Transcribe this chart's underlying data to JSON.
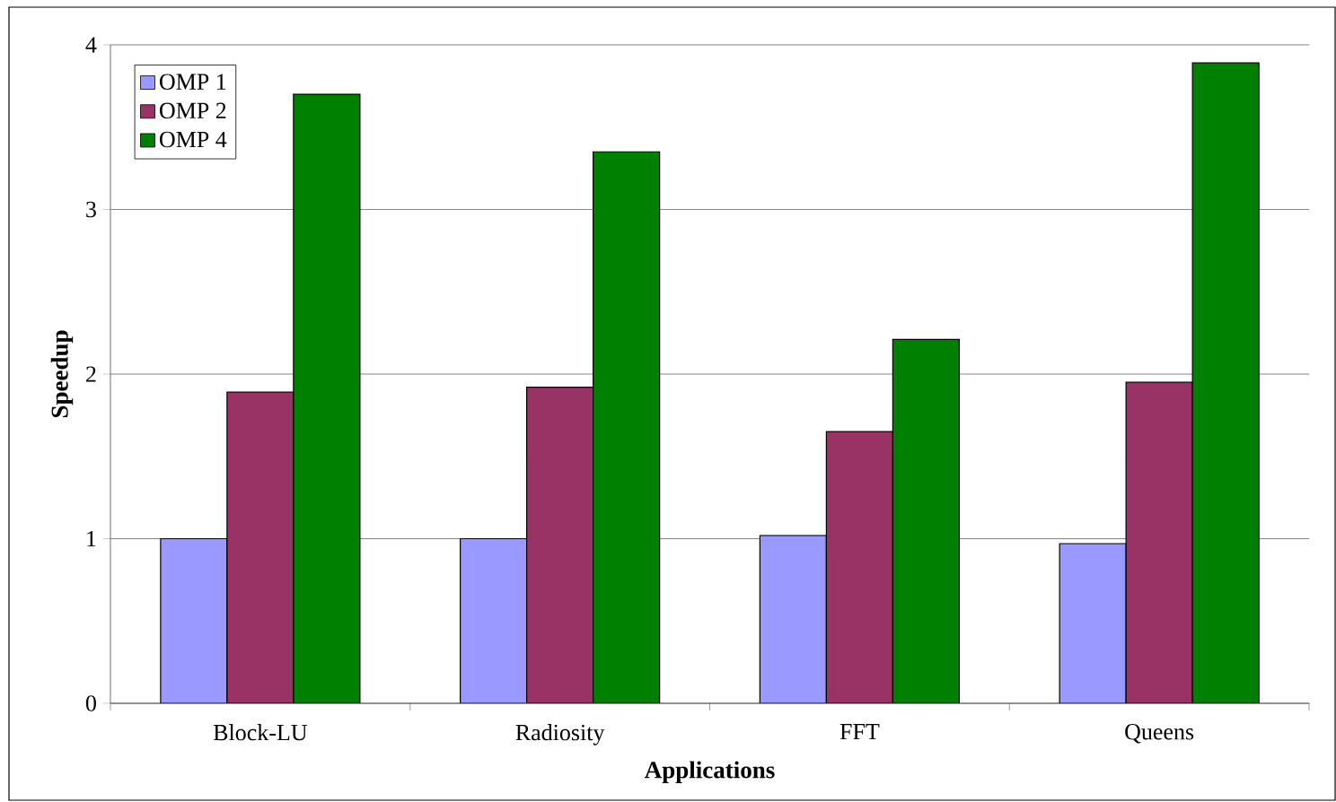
{
  "chart_data": {
    "type": "bar",
    "xlabel": "Applications",
    "ylabel": "Speedup",
    "categories": [
      "Block-LU",
      "Radiosity",
      "FFT",
      "Queens"
    ],
    "series": [
      {
        "name": "OMP 1",
        "color": "#9999ff",
        "values": [
          1.0,
          1.0,
          1.02,
          0.97
        ]
      },
      {
        "name": "OMP 2",
        "color": "#993366",
        "values": [
          1.89,
          1.92,
          1.65,
          1.95
        ]
      },
      {
        "name": "OMP 4",
        "color": "#008000",
        "values": [
          3.7,
          3.35,
          2.21,
          3.89
        ]
      }
    ],
    "ylim": [
      0,
      4
    ],
    "yticks": [
      0,
      1,
      2,
      3,
      4
    ],
    "grid": "y",
    "legend": "top left"
  }
}
